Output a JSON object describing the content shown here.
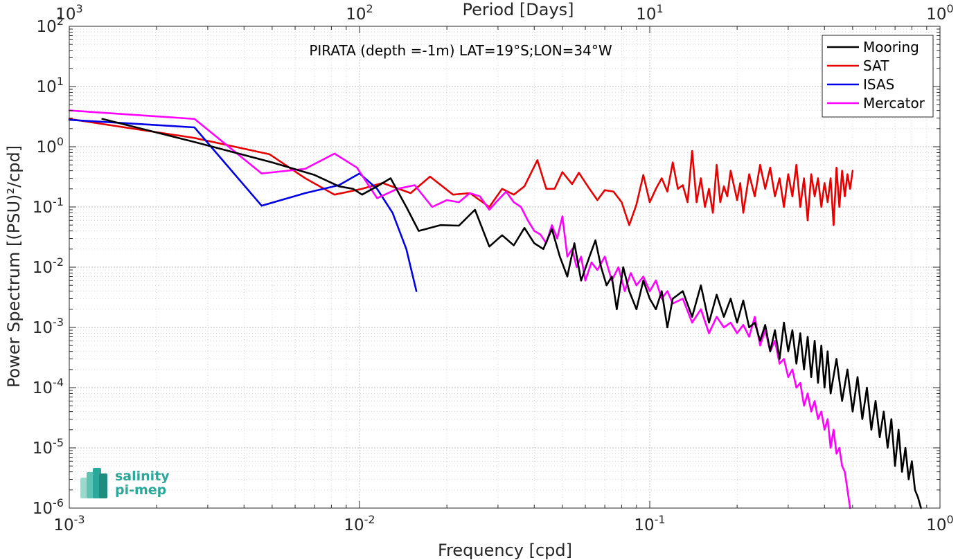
{
  "chart_data": {
    "type": "line",
    "title": "PIRATA (depth =-1m) LAT=19°S;LON=34°W",
    "xlabel": "Frequency [cpd]",
    "ylabel": "Power Spectrum [(PSU)²/cpd]",
    "top_xlabel": "Period [Days]",
    "xscale": "log",
    "yscale": "log",
    "xlim": [
      0.001,
      1
    ],
    "ylim": [
      1e-06,
      100
    ],
    "grid": true,
    "legend_position": "top-right",
    "x_ticks": [
      0.001,
      0.01,
      0.1,
      1
    ],
    "x_tick_labels": [
      {
        "base": "10",
        "exp": "-3"
      },
      {
        "base": "10",
        "exp": "-2"
      },
      {
        "base": "10",
        "exp": "-1"
      },
      {
        "base": "10",
        "exp": "0"
      }
    ],
    "top_x_tick_labels": [
      {
        "base": "10",
        "exp": "3"
      },
      {
        "base": "10",
        "exp": "2"
      },
      {
        "base": "10",
        "exp": "1"
      },
      {
        "base": "10",
        "exp": "0"
      }
    ],
    "y_ticks": [
      1e-06,
      1e-05,
      0.0001,
      0.001,
      0.01,
      0.1,
      1,
      10,
      100
    ],
    "y_tick_labels": [
      {
        "base": "10",
        "exp": "-6"
      },
      {
        "base": "10",
        "exp": "-5"
      },
      {
        "base": "10",
        "exp": "-4"
      },
      {
        "base": "10",
        "exp": "-3"
      },
      {
        "base": "10",
        "exp": "-2"
      },
      {
        "base": "10",
        "exp": "-1"
      },
      {
        "base": "10",
        "exp": "0"
      },
      {
        "base": "10",
        "exp": "1"
      },
      {
        "base": "10",
        "exp": "2"
      }
    ],
    "series": [
      {
        "name": "Mooring",
        "color": "#000000",
        "points": [
          [
            0.0013,
            2.9
          ],
          [
            0.0027,
            1.2
          ],
          [
            0.005,
            0.55
          ],
          [
            0.007,
            0.34
          ],
          [
            0.0085,
            0.22
          ],
          [
            0.0095,
            0.2
          ],
          [
            0.0102,
            0.16
          ],
          [
            0.0115,
            0.22
          ],
          [
            0.0128,
            0.3
          ],
          [
            0.0145,
            0.1
          ],
          [
            0.016,
            0.04
          ],
          [
            0.019,
            0.05
          ],
          [
            0.022,
            0.049
          ],
          [
            0.025,
            0.09
          ],
          [
            0.028,
            0.022
          ],
          [
            0.031,
            0.034
          ],
          [
            0.034,
            0.023
          ],
          [
            0.037,
            0.045
          ],
          [
            0.04,
            0.025
          ],
          [
            0.043,
            0.02
          ],
          [
            0.046,
            0.043
          ],
          [
            0.049,
            0.015
          ],
          [
            0.052,
            0.007
          ],
          [
            0.055,
            0.025
          ],
          [
            0.058,
            0.006
          ],
          [
            0.062,
            0.015
          ],
          [
            0.065,
            0.028
          ],
          [
            0.068,
            0.01
          ],
          [
            0.071,
            0.005
          ],
          [
            0.074,
            0.007
          ],
          [
            0.077,
            0.002
          ],
          [
            0.081,
            0.01
          ],
          [
            0.085,
            0.004
          ],
          [
            0.09,
            0.002
          ],
          [
            0.095,
            0.006
          ],
          [
            0.1,
            0.003
          ],
          [
            0.105,
            0.002
          ],
          [
            0.11,
            0.004
          ],
          [
            0.115,
            0.001
          ],
          [
            0.12,
            0.003
          ],
          [
            0.13,
            0.004
          ],
          [
            0.14,
            0.0015
          ],
          [
            0.15,
            0.005
          ],
          [
            0.16,
            0.0012
          ],
          [
            0.17,
            0.0035
          ],
          [
            0.18,
            0.0015
          ],
          [
            0.19,
            0.003
          ],
          [
            0.2,
            0.0012
          ],
          [
            0.21,
            0.0028
          ],
          [
            0.22,
            0.001
          ],
          [
            0.23,
            0.0012
          ],
          [
            0.24,
            0.0006
          ],
          [
            0.25,
            0.0011
          ],
          [
            0.26,
            0.0004
          ],
          [
            0.27,
            0.0009
          ],
          [
            0.28,
            0.0003
          ],
          [
            0.29,
            0.0012
          ],
          [
            0.3,
            0.0004
          ],
          [
            0.31,
            0.0009
          ],
          [
            0.32,
            0.00025
          ],
          [
            0.33,
            0.0008
          ],
          [
            0.34,
            0.0002
          ],
          [
            0.35,
            0.0007
          ],
          [
            0.36,
            0.00015
          ],
          [
            0.37,
            0.0006
          ],
          [
            0.38,
            0.00012
          ],
          [
            0.39,
            0.0005
          ],
          [
            0.4,
            0.0001
          ],
          [
            0.41,
            0.0004
          ],
          [
            0.42,
            8e-05
          ],
          [
            0.44,
            0.0003
          ],
          [
            0.46,
            6e-05
          ],
          [
            0.48,
            0.0002
          ],
          [
            0.5,
            4e-05
          ],
          [
            0.52,
            0.00015
          ],
          [
            0.54,
            3e-05
          ],
          [
            0.56,
            0.0001
          ],
          [
            0.58,
            2e-05
          ],
          [
            0.6,
            6e-05
          ],
          [
            0.62,
            1.5e-05
          ],
          [
            0.64,
            4e-05
          ],
          [
            0.66,
            1e-05
          ],
          [
            0.68,
            3e-05
          ],
          [
            0.7,
            5e-06
          ],
          [
            0.72,
            2e-05
          ],
          [
            0.74,
            4e-06
          ],
          [
            0.76,
            1e-05
          ],
          [
            0.78,
            3e-06
          ],
          [
            0.8,
            6e-06
          ],
          [
            0.82,
            2e-06
          ],
          [
            0.84,
            1.5e-06
          ],
          [
            0.86,
            1e-06
          ]
        ]
      },
      {
        "name": "SAT",
        "color": "#e60000",
        "points": [
          [
            0.001,
            2.9
          ],
          [
            0.0027,
            1.4
          ],
          [
            0.0049,
            0.75
          ],
          [
            0.0065,
            0.3
          ],
          [
            0.0082,
            0.16
          ],
          [
            0.0102,
            0.2
          ],
          [
            0.012,
            0.25
          ],
          [
            0.015,
            0.17
          ],
          [
            0.0175,
            0.32
          ],
          [
            0.021,
            0.16
          ],
          [
            0.024,
            0.17
          ],
          [
            0.028,
            0.1
          ],
          [
            0.031,
            0.2
          ],
          [
            0.034,
            0.16
          ],
          [
            0.037,
            0.22
          ],
          [
            0.041,
            0.6
          ],
          [
            0.044,
            0.2
          ],
          [
            0.047,
            0.2
          ],
          [
            0.05,
            0.38
          ],
          [
            0.054,
            0.24
          ],
          [
            0.057,
            0.37
          ],
          [
            0.062,
            0.2
          ],
          [
            0.066,
            0.13
          ],
          [
            0.07,
            0.19
          ],
          [
            0.075,
            0.18
          ],
          [
            0.08,
            0.12
          ],
          [
            0.085,
            0.05
          ],
          [
            0.09,
            0.11
          ],
          [
            0.095,
            0.34
          ],
          [
            0.1,
            0.12
          ],
          [
            0.105,
            0.2
          ],
          [
            0.11,
            0.3
          ],
          [
            0.115,
            0.18
          ],
          [
            0.12,
            0.55
          ],
          [
            0.125,
            0.2
          ],
          [
            0.13,
            0.23
          ],
          [
            0.135,
            0.12
          ],
          [
            0.14,
            0.85
          ],
          [
            0.145,
            0.12
          ],
          [
            0.15,
            0.3
          ],
          [
            0.155,
            0.1
          ],
          [
            0.16,
            0.2
          ],
          [
            0.165,
            0.08
          ],
          [
            0.17,
            0.5
          ],
          [
            0.175,
            0.12
          ],
          [
            0.18,
            0.22
          ],
          [
            0.185,
            0.15
          ],
          [
            0.19,
            0.4
          ],
          [
            0.2,
            0.13
          ],
          [
            0.205,
            0.25
          ],
          [
            0.21,
            0.08
          ],
          [
            0.22,
            0.35
          ],
          [
            0.23,
            0.15
          ],
          [
            0.24,
            0.5
          ],
          [
            0.25,
            0.2
          ],
          [
            0.26,
            0.45
          ],
          [
            0.27,
            0.15
          ],
          [
            0.28,
            0.3
          ],
          [
            0.29,
            0.1
          ],
          [
            0.3,
            0.35
          ],
          [
            0.31,
            0.15
          ],
          [
            0.32,
            0.5
          ],
          [
            0.33,
            0.1
          ],
          [
            0.34,
            0.3
          ],
          [
            0.35,
            0.06
          ],
          [
            0.36,
            0.35
          ],
          [
            0.37,
            0.15
          ],
          [
            0.38,
            0.3
          ],
          [
            0.39,
            0.1
          ],
          [
            0.4,
            0.25
          ],
          [
            0.41,
            0.12
          ],
          [
            0.42,
            0.3
          ],
          [
            0.43,
            0.05
          ],
          [
            0.44,
            0.45
          ],
          [
            0.45,
            0.1
          ],
          [
            0.46,
            0.4
          ],
          [
            0.47,
            0.15
          ],
          [
            0.48,
            0.35
          ],
          [
            0.49,
            0.2
          ],
          [
            0.5,
            0.4
          ]
        ]
      },
      {
        "name": "ISAS",
        "color": "#0000e6",
        "points": [
          [
            0.001,
            2.8
          ],
          [
            0.0027,
            2.1
          ],
          [
            0.0046,
            0.105
          ],
          [
            0.0065,
            0.17
          ],
          [
            0.0085,
            0.23
          ],
          [
            0.01,
            0.36
          ],
          [
            0.0115,
            0.2
          ],
          [
            0.013,
            0.08
          ],
          [
            0.0145,
            0.02
          ],
          [
            0.0157,
            0.004
          ]
        ]
      },
      {
        "name": "Mercator",
        "color": "#ff00ff",
        "points": [
          [
            0.001,
            4.0
          ],
          [
            0.0027,
            2.9
          ],
          [
            0.0046,
            0.36
          ],
          [
            0.0065,
            0.43
          ],
          [
            0.0082,
            0.77
          ],
          [
            0.0098,
            0.45
          ],
          [
            0.0115,
            0.14
          ],
          [
            0.0135,
            0.2
          ],
          [
            0.0155,
            0.23
          ],
          [
            0.0178,
            0.1
          ],
          [
            0.02,
            0.13
          ],
          [
            0.022,
            0.12
          ],
          [
            0.024,
            0.17
          ],
          [
            0.026,
            0.15
          ],
          [
            0.028,
            0.09
          ],
          [
            0.03,
            0.13
          ],
          [
            0.032,
            0.18
          ],
          [
            0.034,
            0.12
          ],
          [
            0.036,
            0.1
          ],
          [
            0.038,
            0.06
          ],
          [
            0.04,
            0.04
          ],
          [
            0.042,
            0.035
          ],
          [
            0.044,
            0.025
          ],
          [
            0.046,
            0.05
          ],
          [
            0.048,
            0.03
          ],
          [
            0.05,
            0.07
          ],
          [
            0.052,
            0.015
          ],
          [
            0.054,
            0.02
          ],
          [
            0.056,
            0.01
          ],
          [
            0.058,
            0.015
          ],
          [
            0.06,
            0.006
          ],
          [
            0.063,
            0.012
          ],
          [
            0.066,
            0.009
          ],
          [
            0.07,
            0.015
          ],
          [
            0.074,
            0.006
          ],
          [
            0.078,
            0.01
          ],
          [
            0.082,
            0.004
          ],
          [
            0.086,
            0.008
          ],
          [
            0.09,
            0.005
          ],
          [
            0.095,
            0.007
          ],
          [
            0.1,
            0.004
          ],
          [
            0.105,
            0.006
          ],
          [
            0.11,
            0.003
          ],
          [
            0.115,
            0.004
          ],
          [
            0.12,
            0.0025
          ],
          [
            0.13,
            0.003
          ],
          [
            0.14,
            0.0012
          ],
          [
            0.15,
            0.002
          ],
          [
            0.16,
            0.0008
          ],
          [
            0.17,
            0.0015
          ],
          [
            0.18,
            0.001
          ],
          [
            0.19,
            0.0012
          ],
          [
            0.2,
            0.0008
          ],
          [
            0.21,
            0.0011
          ],
          [
            0.22,
            0.0007
          ],
          [
            0.23,
            0.0015
          ],
          [
            0.24,
            0.0005
          ],
          [
            0.25,
            0.0009
          ],
          [
            0.26,
            0.0004
          ],
          [
            0.27,
            0.0006
          ],
          [
            0.28,
            0.00025
          ],
          [
            0.29,
            0.0003
          ],
          [
            0.3,
            0.00015
          ],
          [
            0.31,
            0.0002
          ],
          [
            0.32,
            0.0001
          ],
          [
            0.33,
            0.00012
          ],
          [
            0.34,
            5e-05
          ],
          [
            0.35,
            8e-05
          ],
          [
            0.36,
            4e-05
          ],
          [
            0.37,
            6e-05
          ],
          [
            0.38,
            3e-05
          ],
          [
            0.39,
            4e-05
          ],
          [
            0.4,
            2e-05
          ],
          [
            0.41,
            3e-05
          ],
          [
            0.42,
            1e-05
          ],
          [
            0.43,
            2e-05
          ],
          [
            0.44,
            8e-06
          ],
          [
            0.45,
            1e-05
          ],
          [
            0.46,
            5e-06
          ],
          [
            0.47,
            4e-06
          ],
          [
            0.48,
            2e-06
          ],
          [
            0.49,
            1e-06
          ]
        ]
      }
    ]
  },
  "logo": {
    "line1": "salinity",
    "line2": "pi-mep"
  }
}
